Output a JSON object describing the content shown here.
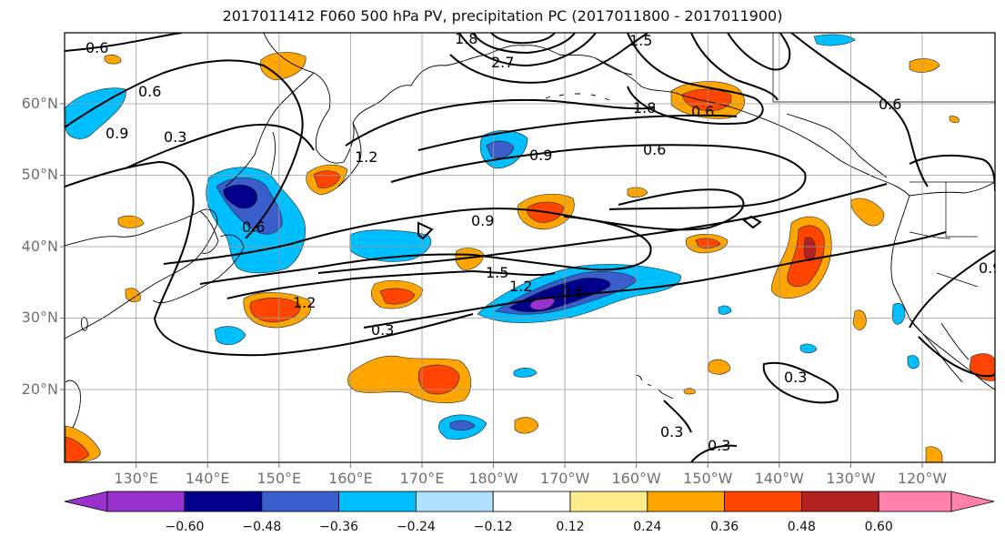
{
  "title": "2017011412 F060 500 hPa PV, precipitation PC (2017011800 - 2017011900)",
  "lat_labels": [
    "60°N",
    "50°N",
    "40°N",
    "30°N",
    "20°N"
  ],
  "lon_labels": [
    "130°E",
    "140°E",
    "150°E",
    "160°E",
    "170°E",
    "180°W",
    "170°W",
    "160°W",
    "150°W",
    "140°W",
    "130°W",
    "120°W"
  ],
  "colorbar": {
    "ticks": [
      "−0.60",
      "−0.48",
      "−0.36",
      "−0.24",
      "−0.12",
      "0.12",
      "0.24",
      "0.36",
      "0.48",
      "0.60"
    ],
    "colors": [
      "#9932cc",
      "#00008b",
      "#3a5fcd",
      "#00bfff",
      "#b0e2ff",
      "#ffffff",
      "#ffec8b",
      "#ffa500",
      "#ff4500",
      "#b22222",
      "#ff82ab"
    ]
  },
  "contour_labels": [
    "0.6",
    "0.6",
    "0.9",
    "0.3",
    "0.6",
    "1.2",
    "0.9",
    "0.6",
    "0.6",
    "0.9",
    "1.5",
    "1.2",
    "0.6",
    "1.2",
    "0.3",
    "1.8",
    "0.3",
    "0.3",
    "0.3",
    "0.6",
    "0.9",
    "2.7",
    "1.5",
    "1.8"
  ]
}
